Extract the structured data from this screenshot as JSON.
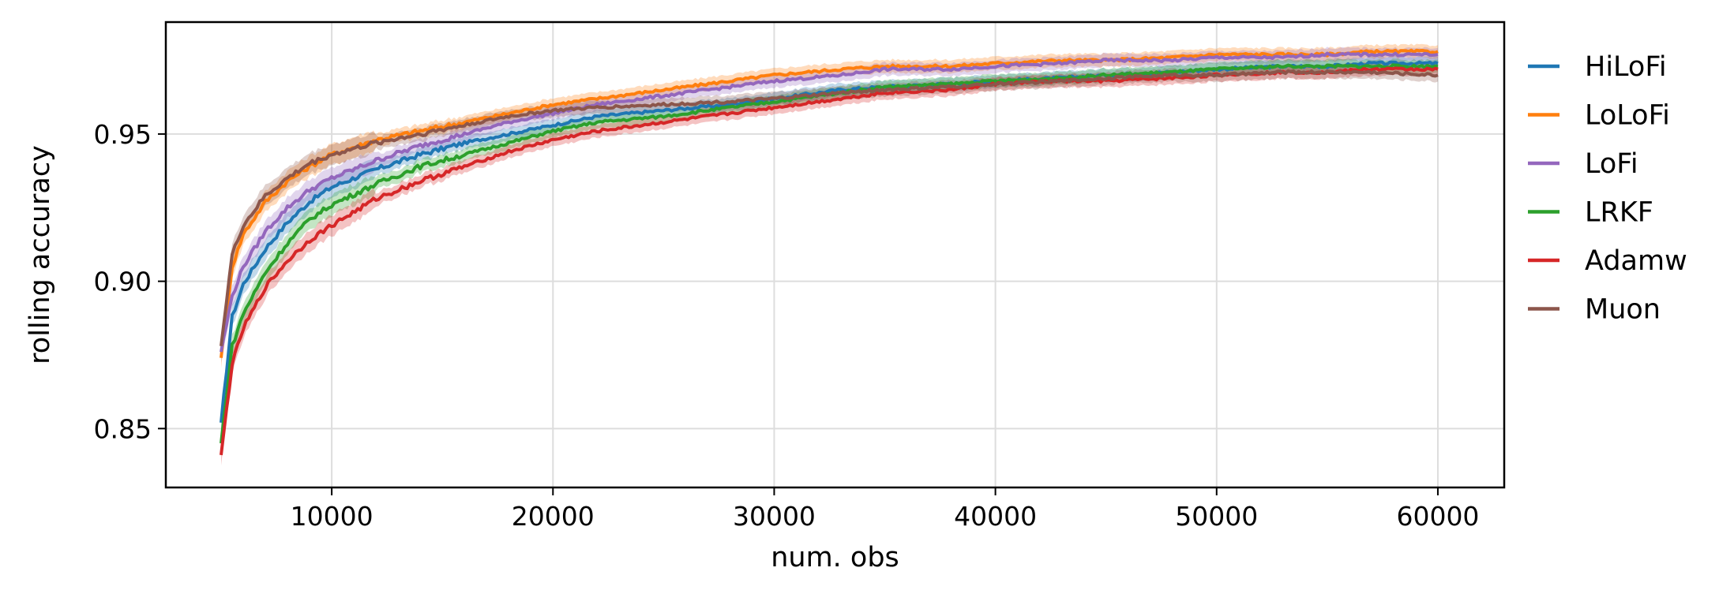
{
  "chart_data": {
    "type": "line",
    "title": "",
    "xlabel": "num. obs",
    "ylabel": "rolling accuracy",
    "xlim": [
      2500,
      63000
    ],
    "ylim": [
      0.83,
      0.988
    ],
    "xticks": [
      10000,
      20000,
      30000,
      40000,
      50000,
      60000
    ],
    "yticks": [
      0.85,
      0.9,
      0.95
    ],
    "xtick_labels": [
      "10000",
      "20000",
      "30000",
      "40000",
      "50000",
      "60000"
    ],
    "ytick_labels": [
      "0.85",
      "0.90",
      "0.95"
    ],
    "grid": true,
    "legend_position": "outside-right",
    "series": [
      {
        "name": "HiLoFi",
        "color": "#1f77b4",
        "points": [
          [
            5000,
            0.852
          ],
          [
            5500,
            0.888
          ],
          [
            6000,
            0.899
          ],
          [
            7000,
            0.911
          ],
          [
            8000,
            0.92
          ],
          [
            9000,
            0.927
          ],
          [
            10000,
            0.932
          ],
          [
            12000,
            0.938
          ],
          [
            14000,
            0.943
          ],
          [
            16000,
            0.947
          ],
          [
            18000,
            0.95
          ],
          [
            20000,
            0.953
          ],
          [
            22000,
            0.956
          ],
          [
            25000,
            0.958
          ],
          [
            28000,
            0.96
          ],
          [
            30000,
            0.962
          ],
          [
            33000,
            0.965
          ],
          [
            35000,
            0.966
          ],
          [
            38000,
            0.967
          ],
          [
            40000,
            0.968
          ],
          [
            43000,
            0.969
          ],
          [
            45000,
            0.97
          ],
          [
            48000,
            0.971
          ],
          [
            50000,
            0.972
          ],
          [
            53000,
            0.973
          ],
          [
            55000,
            0.973
          ],
          [
            57000,
            0.974
          ],
          [
            60000,
            0.974
          ]
        ]
      },
      {
        "name": "LoLoFi",
        "color": "#ff7f0e",
        "points": [
          [
            5000,
            0.874
          ],
          [
            5500,
            0.905
          ],
          [
            6000,
            0.916
          ],
          [
            7000,
            0.927
          ],
          [
            8000,
            0.934
          ],
          [
            9000,
            0.939
          ],
          [
            10000,
            0.943
          ],
          [
            12000,
            0.948
          ],
          [
            14000,
            0.951
          ],
          [
            16000,
            0.954
          ],
          [
            18000,
            0.957
          ],
          [
            20000,
            0.96
          ],
          [
            22000,
            0.962
          ],
          [
            25000,
            0.965
          ],
          [
            28000,
            0.968
          ],
          [
            30000,
            0.97
          ],
          [
            33000,
            0.972
          ],
          [
            35000,
            0.973
          ],
          [
            38000,
            0.973
          ],
          [
            40000,
            0.974
          ],
          [
            43000,
            0.975
          ],
          [
            45000,
            0.975
          ],
          [
            48000,
            0.976
          ],
          [
            50000,
            0.977
          ],
          [
            53000,
            0.977
          ],
          [
            55000,
            0.977
          ],
          [
            57000,
            0.978
          ],
          [
            60000,
            0.978
          ]
        ]
      },
      {
        "name": "LoFi",
        "color": "#9467bd",
        "points": [
          [
            5000,
            0.876
          ],
          [
            5500,
            0.895
          ],
          [
            6000,
            0.905
          ],
          [
            7000,
            0.917
          ],
          [
            8000,
            0.925
          ],
          [
            9000,
            0.931
          ],
          [
            10000,
            0.935
          ],
          [
            12000,
            0.941
          ],
          [
            14000,
            0.946
          ],
          [
            16000,
            0.95
          ],
          [
            18000,
            0.954
          ],
          [
            20000,
            0.957
          ],
          [
            22000,
            0.96
          ],
          [
            25000,
            0.963
          ],
          [
            28000,
            0.966
          ],
          [
            30000,
            0.968
          ],
          [
            33000,
            0.97
          ],
          [
            35000,
            0.972
          ],
          [
            38000,
            0.972
          ],
          [
            40000,
            0.973
          ],
          [
            43000,
            0.974
          ],
          [
            45000,
            0.975
          ],
          [
            48000,
            0.975
          ],
          [
            50000,
            0.976
          ],
          [
            53000,
            0.976
          ],
          [
            55000,
            0.977
          ],
          [
            57000,
            0.977
          ],
          [
            60000,
            0.977
          ]
        ]
      },
      {
        "name": "LRKF",
        "color": "#2ca02c",
        "points": [
          [
            5000,
            0.845
          ],
          [
            5500,
            0.878
          ],
          [
            6000,
            0.889
          ],
          [
            7000,
            0.903
          ],
          [
            8000,
            0.913
          ],
          [
            9000,
            0.921
          ],
          [
            10000,
            0.926
          ],
          [
            12000,
            0.933
          ],
          [
            14000,
            0.939
          ],
          [
            16000,
            0.943
          ],
          [
            18000,
            0.947
          ],
          [
            20000,
            0.951
          ],
          [
            22000,
            0.954
          ],
          [
            25000,
            0.956
          ],
          [
            28000,
            0.959
          ],
          [
            30000,
            0.961
          ],
          [
            33000,
            0.964
          ],
          [
            35000,
            0.966
          ],
          [
            38000,
            0.967
          ],
          [
            40000,
            0.968
          ],
          [
            43000,
            0.969
          ],
          [
            45000,
            0.97
          ],
          [
            48000,
            0.971
          ],
          [
            50000,
            0.972
          ],
          [
            53000,
            0.973
          ],
          [
            55000,
            0.973
          ],
          [
            57000,
            0.973
          ],
          [
            60000,
            0.973
          ]
        ]
      },
      {
        "name": "Adamw",
        "color": "#d62728",
        "points": [
          [
            5000,
            0.841
          ],
          [
            5500,
            0.872
          ],
          [
            6000,
            0.884
          ],
          [
            7000,
            0.898
          ],
          [
            8000,
            0.907
          ],
          [
            9000,
            0.914
          ],
          [
            10000,
            0.919
          ],
          [
            12000,
            0.928
          ],
          [
            14000,
            0.934
          ],
          [
            16000,
            0.939
          ],
          [
            18000,
            0.944
          ],
          [
            20000,
            0.948
          ],
          [
            22000,
            0.951
          ],
          [
            25000,
            0.954
          ],
          [
            28000,
            0.957
          ],
          [
            30000,
            0.959
          ],
          [
            33000,
            0.962
          ],
          [
            35000,
            0.964
          ],
          [
            38000,
            0.965
          ],
          [
            40000,
            0.967
          ],
          [
            43000,
            0.968
          ],
          [
            45000,
            0.968
          ],
          [
            48000,
            0.969
          ],
          [
            50000,
            0.97
          ],
          [
            53000,
            0.971
          ],
          [
            55000,
            0.971
          ],
          [
            57000,
            0.972
          ],
          [
            60000,
            0.972
          ]
        ]
      },
      {
        "name": "Muon",
        "color": "#8c564b",
        "points": [
          [
            5000,
            0.878
          ],
          [
            5500,
            0.909
          ],
          [
            6000,
            0.919
          ],
          [
            7000,
            0.929
          ],
          [
            8000,
            0.935
          ],
          [
            9000,
            0.94
          ],
          [
            10000,
            0.943
          ],
          [
            12000,
            0.947
          ],
          [
            14000,
            0.95
          ],
          [
            16000,
            0.953
          ],
          [
            18000,
            0.956
          ],
          [
            20000,
            0.958
          ],
          [
            22000,
            0.959
          ],
          [
            25000,
            0.96
          ],
          [
            28000,
            0.961
          ],
          [
            30000,
            0.962
          ],
          [
            33000,
            0.964
          ],
          [
            35000,
            0.965
          ],
          [
            38000,
            0.966
          ],
          [
            40000,
            0.967
          ],
          [
            43000,
            0.968
          ],
          [
            45000,
            0.969
          ],
          [
            48000,
            0.97
          ],
          [
            50000,
            0.97
          ],
          [
            53000,
            0.971
          ],
          [
            55000,
            0.971
          ],
          [
            57000,
            0.971
          ],
          [
            60000,
            0.97
          ]
        ]
      }
    ]
  }
}
